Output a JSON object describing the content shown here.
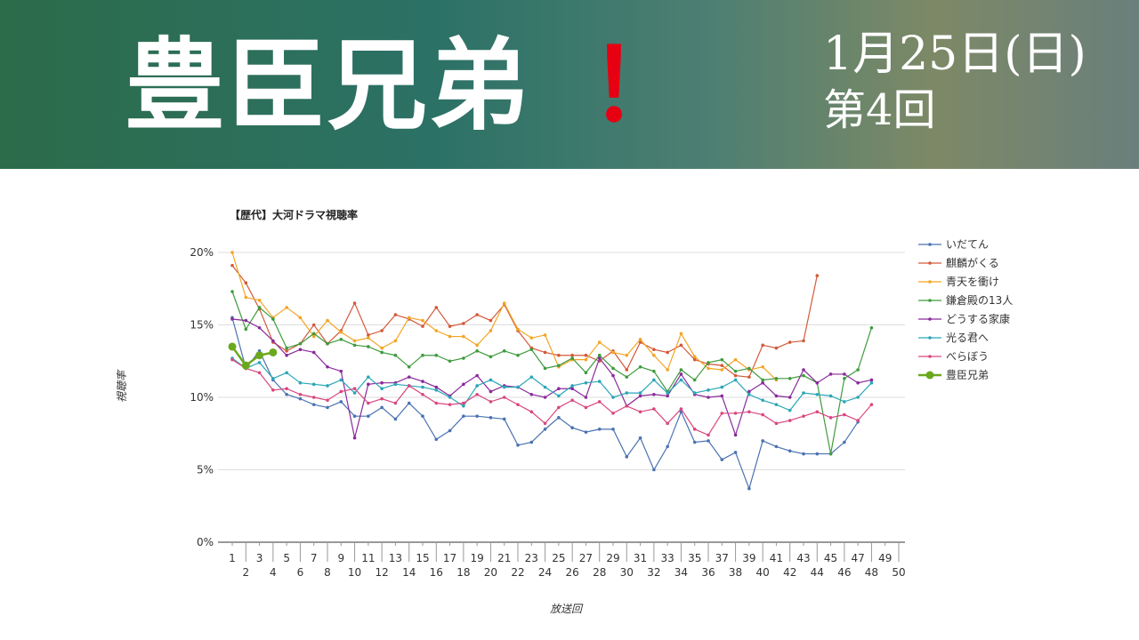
{
  "header": {
    "title": "豊臣兄弟",
    "exclamation": "！",
    "date": "1月25日(日)",
    "episode": "第4回"
  },
  "chart_data": {
    "type": "line",
    "title": "【歴代】大河ドラマ視聴率",
    "xlabel": "放送回",
    "ylabel": "視聴率",
    "ylim": [
      0,
      20
    ],
    "yticks": [
      "0%",
      "5%",
      "10%",
      "15%",
      "20%"
    ],
    "xlim": [
      1,
      50
    ],
    "xticks": [
      "1",
      "2",
      "3",
      "4",
      "5",
      "6",
      "7",
      "8",
      "9",
      "10",
      "11",
      "12",
      "13",
      "14",
      "15",
      "16",
      "17",
      "18",
      "19",
      "20",
      "21",
      "22",
      "23",
      "24",
      "25",
      "26",
      "27",
      "28",
      "29",
      "30",
      "31",
      "32",
      "33",
      "34",
      "35",
      "36",
      "37",
      "38",
      "39",
      "40",
      "41",
      "42",
      "43",
      "44",
      "45",
      "46",
      "47",
      "48",
      "49",
      "50"
    ],
    "grid": true,
    "legend_position": "right",
    "series": [
      {
        "name": "いだてん",
        "color": "#4a72b2",
        "values": [
          15.5,
          12.0,
          13.2,
          11.2,
          10.2,
          9.9,
          9.5,
          9.3,
          9.7,
          8.7,
          8.7,
          9.3,
          8.5,
          9.6,
          8.7,
          7.1,
          7.7,
          8.7,
          8.7,
          8.6,
          8.5,
          6.7,
          6.9,
          7.8,
          8.6,
          7.9,
          7.6,
          7.8,
          7.8,
          5.9,
          7.2,
          5.0,
          6.6,
          9.0,
          6.9,
          7.0,
          5.7,
          6.2,
          3.7,
          7.0,
          6.6,
          6.3,
          6.1,
          6.1,
          6.1,
          6.9,
          8.3
        ]
      },
      {
        "name": "麒麟がくる",
        "color": "#d35a3a",
        "values": [
          19.1,
          17.9,
          16.1,
          13.8,
          13.2,
          13.7,
          15.0,
          13.7,
          14.6,
          16.5,
          14.3,
          14.6,
          15.7,
          15.4,
          14.9,
          16.2,
          14.9,
          15.1,
          15.7,
          15.3,
          16.4,
          14.6,
          13.4,
          13.1,
          12.9,
          12.9,
          12.9,
          12.5,
          13.2,
          11.9,
          13.8,
          13.3,
          13.1,
          13.6,
          12.6,
          12.3,
          12.2,
          11.5,
          11.4,
          13.6,
          13.4,
          13.8,
          13.9,
          18.4
        ]
      },
      {
        "name": "青天を衝け",
        "color": "#f3a525",
        "values": [
          20.0,
          16.9,
          16.7,
          15.5,
          16.2,
          15.5,
          14.2,
          15.3,
          14.5,
          13.9,
          14.1,
          13.4,
          13.9,
          15.5,
          15.3,
          14.6,
          14.2,
          14.2,
          13.6,
          14.6,
          16.5,
          14.7,
          14.1,
          14.3,
          12.1,
          12.6,
          12.6,
          13.8,
          13.1,
          12.9,
          14.0,
          12.9,
          11.9,
          14.4,
          12.8,
          12.0,
          11.9,
          12.6,
          11.9,
          12.1,
          11.2
        ]
      },
      {
        "name": "鎌倉殿の13人",
        "color": "#3e9b3e",
        "values": [
          17.3,
          14.7,
          16.2,
          15.4,
          13.4,
          13.7,
          14.4,
          13.7,
          14.0,
          13.6,
          13.5,
          13.1,
          12.9,
          12.1,
          12.9,
          12.9,
          12.5,
          12.7,
          13.2,
          12.8,
          13.2,
          12.9,
          13.3,
          12.0,
          12.2,
          12.7,
          11.7,
          12.9,
          12.0,
          11.4,
          12.1,
          11.8,
          10.4,
          11.9,
          11.2,
          12.4,
          12.6,
          11.8,
          12.0,
          11.2,
          11.3,
          11.3,
          11.5,
          11.0,
          6.1,
          11.3,
          11.9,
          14.8
        ]
      },
      {
        "name": "どうする家康",
        "color": "#8a2a9c",
        "values": [
          15.4,
          15.3,
          14.8,
          13.9,
          12.9,
          13.3,
          13.1,
          12.1,
          11.8,
          7.2,
          10.9,
          11.0,
          11.0,
          11.4,
          11.1,
          10.7,
          10.1,
          10.9,
          11.5,
          10.4,
          10.8,
          10.7,
          10.2,
          10.0,
          10.6,
          10.6,
          10.0,
          12.7,
          11.5,
          9.4,
          10.1,
          10.2,
          10.1,
          11.6,
          10.2,
          10.0,
          10.1,
          7.4,
          10.4,
          11.0,
          10.1,
          10.0,
          11.9,
          11.0,
          11.6,
          11.6,
          11.0,
          11.2
        ]
      },
      {
        "name": "光る君へ",
        "color": "#2aa6b8",
        "values": [
          12.7,
          12.0,
          12.4,
          11.3,
          11.7,
          11.0,
          10.9,
          10.8,
          11.2,
          10.3,
          11.4,
          10.6,
          10.9,
          10.8,
          10.7,
          10.5,
          10.0,
          9.4,
          10.8,
          11.2,
          10.7,
          10.7,
          11.4,
          10.7,
          10.1,
          10.8,
          11.0,
          11.1,
          10.0,
          10.3,
          10.3,
          11.2,
          10.3,
          11.2,
          10.3,
          10.5,
          10.7,
          11.2,
          10.2,
          9.8,
          9.5,
          9.1,
          10.3,
          10.2,
          10.1,
          9.7,
          10.0,
          11.0
        ]
      },
      {
        "name": "べらぼう",
        "color": "#d9477f",
        "values": [
          12.6,
          12.0,
          11.7,
          10.5,
          10.6,
          10.2,
          10.0,
          9.8,
          10.4,
          10.6,
          9.6,
          9.9,
          9.6,
          10.8,
          10.2,
          9.6,
          9.5,
          9.6,
          10.2,
          9.7,
          10.0,
          9.5,
          9.0,
          8.2,
          9.3,
          9.8,
          9.3,
          9.7,
          8.9,
          9.4,
          9.0,
          9.2,
          8.2,
          9.2,
          7.8,
          7.4,
          8.9,
          8.9,
          9.0,
          8.8,
          8.2,
          8.4,
          8.7,
          9.0,
          8.6,
          8.8,
          8.4,
          9.5
        ]
      },
      {
        "name": "豊臣兄弟",
        "color": "#6aa81e",
        "highlight": true,
        "values": [
          13.5,
          12.2,
          12.9,
          13.1
        ]
      }
    ]
  }
}
